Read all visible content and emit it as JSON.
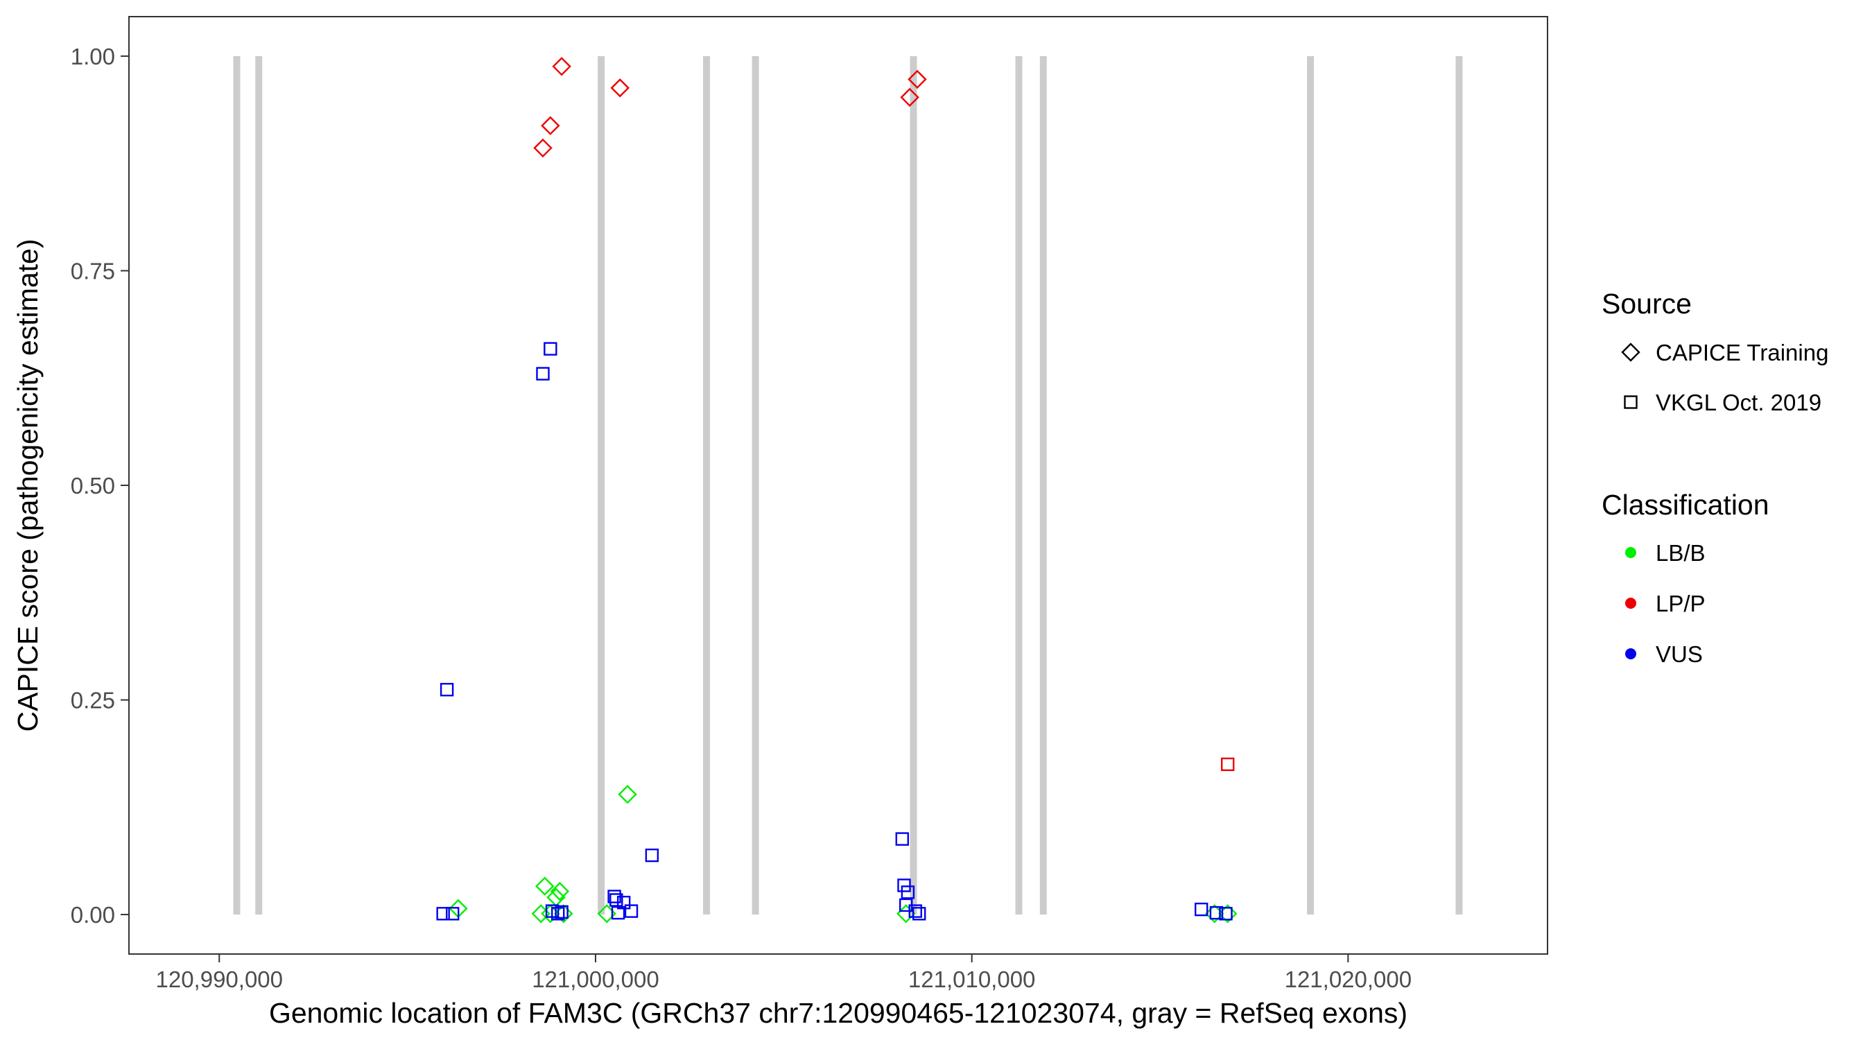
{
  "chart_data": {
    "type": "scatter",
    "title": "",
    "xlabel": "Genomic location of FAM3C (GRCh37 chr7:120990465-121023074, gray = RefSeq exons)",
    "ylabel": "CAPICE score (pathogenicity estimate)",
    "xlim": [
      120987600,
      121025300
    ],
    "ylim": [
      -0.046,
      1.046
    ],
    "x_ticks": [
      120990000,
      121000000,
      121010000,
      121020000
    ],
    "x_tick_labels": [
      "120,990,000",
      "121,000,000",
      "121,010,000",
      "121,020,000"
    ],
    "y_ticks": [
      0.0,
      0.25,
      0.5,
      0.75,
      1.0
    ],
    "y_tick_labels": [
      "0.00",
      "0.25",
      "0.50",
      "0.75",
      "1.00"
    ],
    "grid": false,
    "exon_color": "#cccccc",
    "exons": [
      120990465,
      120991050,
      121000150,
      121002950,
      121004250,
      121008450,
      121011250,
      121011900,
      121019000,
      121022950
    ],
    "legend": {
      "placement": "right",
      "source_title": "Source",
      "source_items": [
        {
          "label": "CAPICE Training",
          "shape": "diamond"
        },
        {
          "label": "VKGL Oct. 2019",
          "shape": "square"
        }
      ],
      "class_title": "Classification",
      "class_items": [
        {
          "label": "LB/B",
          "color": "#00ee00"
        },
        {
          "label": "LP/P",
          "color": "#ee0000"
        },
        {
          "label": "VUS",
          "color": "#0000ee"
        }
      ]
    },
    "series": [
      {
        "source": "CAPICE Training",
        "classification": "LP/P",
        "points": [
          [
            120998600,
            0.893
          ],
          [
            120998800,
            0.919
          ],
          [
            120999100,
            0.988
          ],
          [
            121000650,
            0.963
          ],
          [
            121008350,
            0.952
          ],
          [
            121008550,
            0.973
          ]
        ]
      },
      {
        "source": "CAPICE Training",
        "classification": "LB/B",
        "points": [
          [
            120996350,
            0.007
          ],
          [
            120998550,
            0.001
          ],
          [
            120998650,
            0.033
          ],
          [
            120998800,
            0.001
          ],
          [
            120998950,
            0.02
          ],
          [
            120999050,
            0.027
          ],
          [
            120999150,
            0.001
          ],
          [
            121000300,
            0.001
          ],
          [
            121000850,
            0.14
          ],
          [
            121008250,
            0.001
          ],
          [
            121016450,
            0.001
          ],
          [
            121016800,
            0.001
          ]
        ]
      },
      {
        "source": "VKGL Oct. 2019",
        "classification": "VUS",
        "points": [
          [
            120995950,
            0.001
          ],
          [
            120996050,
            0.262
          ],
          [
            120996200,
            0.001
          ],
          [
            120998600,
            0.63
          ],
          [
            120998800,
            0.659
          ],
          [
            120998850,
            0.004
          ],
          [
            120999000,
            0.001
          ],
          [
            120999100,
            0.003
          ],
          [
            121000500,
            0.021
          ],
          [
            121000550,
            0.017
          ],
          [
            121000600,
            0.002
          ],
          [
            121000750,
            0.014
          ],
          [
            121000950,
            0.004
          ],
          [
            121001500,
            0.069
          ],
          [
            121008150,
            0.088
          ],
          [
            121008200,
            0.034
          ],
          [
            121008250,
            0.011
          ],
          [
            121008300,
            0.026
          ],
          [
            121008500,
            0.004
          ],
          [
            121008600,
            0.001
          ],
          [
            121016100,
            0.006
          ],
          [
            121016500,
            0.002
          ],
          [
            121016750,
            0.001
          ]
        ]
      },
      {
        "source": "VKGL Oct. 2019",
        "classification": "LP/P",
        "points": [
          [
            121016800,
            0.175
          ]
        ]
      }
    ]
  }
}
